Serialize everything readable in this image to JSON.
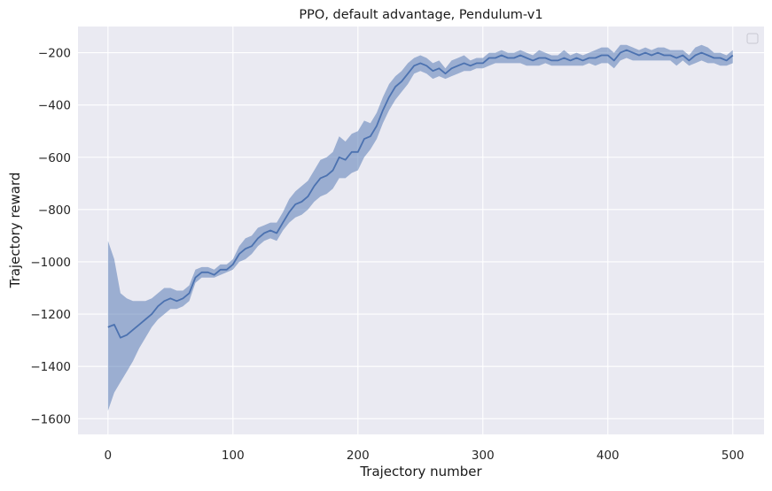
{
  "chart_data": {
    "type": "line",
    "title": "PPO, default advantage, Pendulum-v1",
    "xlabel": "Trajectory number",
    "ylabel": "Trajectory reward",
    "xlim": [
      -24,
      525
    ],
    "ylim": [
      -1660,
      -100
    ],
    "xticks": [
      0,
      100,
      200,
      300,
      400,
      500
    ],
    "yticks": [
      -1600,
      -1400,
      -1200,
      -1000,
      -800,
      -600,
      -400,
      -200
    ],
    "xtick_labels": [
      "0",
      "100",
      "200",
      "300",
      "400",
      "500"
    ],
    "ytick_labels": [
      "−1600",
      "−1400",
      "−1200",
      "−1000",
      "−800",
      "−600",
      "−400",
      "−200"
    ],
    "grid": true,
    "legend": "top-right (empty box)",
    "colors": {
      "background": "#eaeaf2",
      "grid": "#ffffff",
      "line": "#4c72b0",
      "band": "#4c72b0",
      "band_opacity": 0.5
    },
    "series": [
      {
        "x": [
          0,
          5,
          10,
          15,
          20,
          25,
          30,
          35,
          40,
          45,
          50,
          55,
          60,
          65,
          70,
          75,
          80,
          85,
          90,
          95,
          100,
          105,
          110,
          115,
          120,
          125,
          130,
          135,
          140,
          145,
          150,
          155,
          160,
          165,
          170,
          175,
          180,
          185,
          190,
          195,
          200,
          205,
          210,
          215,
          220,
          225,
          230,
          235,
          240,
          245,
          250,
          255,
          260,
          265,
          270,
          275,
          280,
          285,
          290,
          295,
          300,
          305,
          310,
          315,
          320,
          325,
          330,
          335,
          340,
          345,
          350,
          355,
          360,
          365,
          370,
          375,
          380,
          385,
          390,
          395,
          400,
          405,
          410,
          415,
          420,
          425,
          430,
          435,
          440,
          445,
          450,
          455,
          460,
          465,
          470,
          475,
          480,
          485,
          490,
          495,
          500
        ],
        "mean": [
          -1250,
          -1240,
          -1290,
          -1280,
          -1260,
          -1240,
          -1220,
          -1200,
          -1170,
          -1150,
          -1140,
          -1150,
          -1140,
          -1120,
          -1060,
          -1040,
          -1040,
          -1050,
          -1030,
          -1030,
          -1010,
          -970,
          -950,
          -940,
          -910,
          -890,
          -880,
          -890,
          -850,
          -810,
          -780,
          -770,
          -750,
          -710,
          -680,
          -670,
          -650,
          -600,
          -610,
          -580,
          -580,
          -530,
          -520,
          -480,
          -420,
          -370,
          -330,
          -310,
          -280,
          -250,
          -240,
          -250,
          -270,
          -260,
          -280,
          -260,
          -250,
          -240,
          -250,
          -240,
          -240,
          -220,
          -220,
          -210,
          -220,
          -220,
          -210,
          -220,
          -230,
          -220,
          -220,
          -230,
          -230,
          -220,
          -230,
          -220,
          -230,
          -220,
          -220,
          -210,
          -210,
          -230,
          -200,
          -190,
          -200,
          -210,
          -200,
          -210,
          -200,
          -210,
          -210,
          -220,
          -210,
          -230,
          -210,
          -200,
          -210,
          -220,
          -220,
          -230,
          -210
        ],
        "lower": [
          -1570,
          -1500,
          -1460,
          -1420,
          -1380,
          -1330,
          -1290,
          -1250,
          -1220,
          -1200,
          -1180,
          -1180,
          -1170,
          -1150,
          -1080,
          -1060,
          -1060,
          -1060,
          -1050,
          -1040,
          -1030,
          -1000,
          -990,
          -970,
          -940,
          -920,
          -910,
          -920,
          -880,
          -850,
          -830,
          -820,
          -800,
          -770,
          -750,
          -740,
          -720,
          -680,
          -680,
          -660,
          -650,
          -600,
          -570,
          -530,
          -470,
          -420,
          -380,
          -350,
          -320,
          -280,
          -270,
          -280,
          -300,
          -290,
          -300,
          -290,
          -280,
          -270,
          -270,
          -260,
          -260,
          -250,
          -240,
          -240,
          -240,
          -240,
          -240,
          -250,
          -250,
          -250,
          -240,
          -250,
          -250,
          -250,
          -250,
          -250,
          -250,
          -240,
          -250,
          -240,
          -240,
          -260,
          -230,
          -220,
          -230,
          -230,
          -230,
          -230,
          -230,
          -230,
          -230,
          -250,
          -230,
          -250,
          -240,
          -230,
          -240,
          -240,
          -250,
          -250,
          -240
        ],
        "upper": [
          -920,
          -990,
          -1120,
          -1140,
          -1150,
          -1150,
          -1150,
          -1140,
          -1120,
          -1100,
          -1100,
          -1110,
          -1110,
          -1090,
          -1030,
          -1020,
          -1020,
          -1030,
          -1010,
          -1010,
          -990,
          -940,
          -910,
          -900,
          -870,
          -860,
          -850,
          -850,
          -810,
          -760,
          -730,
          -710,
          -690,
          -650,
          -610,
          -600,
          -580,
          -520,
          -540,
          -510,
          -500,
          -460,
          -470,
          -430,
          -370,
          -320,
          -290,
          -270,
          -240,
          -220,
          -210,
          -220,
          -240,
          -230,
          -260,
          -230,
          -220,
          -210,
          -230,
          -220,
          -220,
          -200,
          -200,
          -190,
          -200,
          -200,
          -190,
          -200,
          -210,
          -190,
          -200,
          -210,
          -210,
          -190,
          -210,
          -200,
          -210,
          -200,
          -190,
          -180,
          -180,
          -200,
          -170,
          -170,
          -180,
          -190,
          -180,
          -190,
          -180,
          -180,
          -190,
          -190,
          -190,
          -210,
          -180,
          -170,
          -180,
          -200,
          -200,
          -210,
          -190
        ]
      }
    ]
  }
}
